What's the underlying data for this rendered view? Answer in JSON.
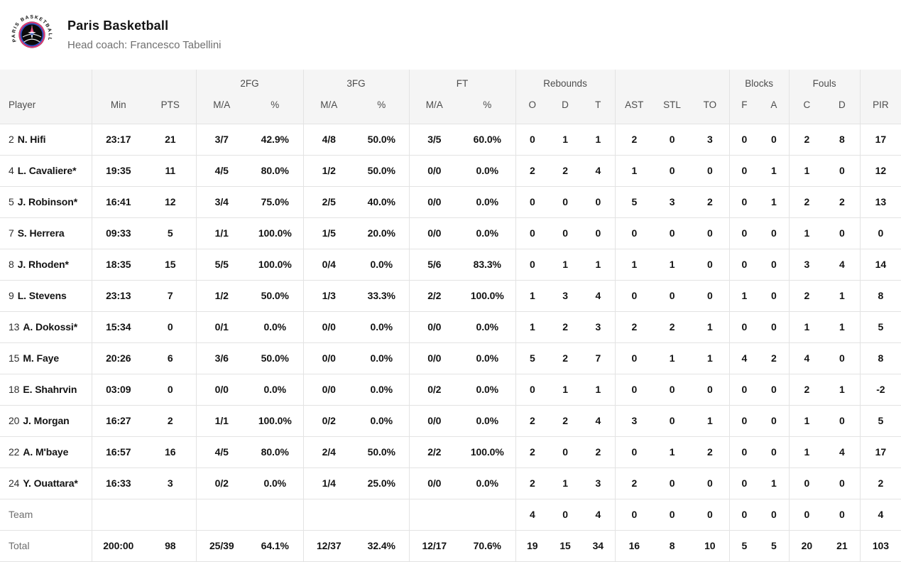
{
  "team": {
    "name": "Paris Basketball",
    "coach": "Head coach: Francesco Tabellini",
    "logo_text": "PARIS BASKETBALL",
    "logo_colors": {
      "ring_pink": "#e73a74",
      "ring_blue": "#2d53c4",
      "disc": "#0b0b0b"
    }
  },
  "table": {
    "groups": {
      "fg2": "2FG",
      "fg3": "3FG",
      "ft": "FT",
      "rebounds": "Rebounds",
      "blocks": "Blocks",
      "fouls": "Fouls"
    },
    "headers": {
      "player": "Player",
      "min": "Min",
      "pts": "PTS",
      "ma": "M/A",
      "pct": "%",
      "o": "O",
      "d": "D",
      "t": "T",
      "ast": "AST",
      "stl": "STL",
      "to": "TO",
      "f": "F",
      "a": "A",
      "c": "C",
      "pir": "PIR"
    },
    "rows": [
      {
        "number": "2",
        "name": "N. Hifi",
        "muted": false,
        "stats": [
          "23:17",
          "21",
          "3/7",
          "42.9%",
          "4/8",
          "50.0%",
          "3/5",
          "60.0%",
          "0",
          "1",
          "1",
          "2",
          "0",
          "3",
          "0",
          "0",
          "2",
          "8",
          "17"
        ]
      },
      {
        "number": "4",
        "name": "L. Cavaliere*",
        "muted": false,
        "stats": [
          "19:35",
          "11",
          "4/5",
          "80.0%",
          "1/2",
          "50.0%",
          "0/0",
          "0.0%",
          "2",
          "2",
          "4",
          "1",
          "0",
          "0",
          "0",
          "1",
          "1",
          "0",
          "12"
        ]
      },
      {
        "number": "5",
        "name": "J. Robinson*",
        "muted": false,
        "stats": [
          "16:41",
          "12",
          "3/4",
          "75.0%",
          "2/5",
          "40.0%",
          "0/0",
          "0.0%",
          "0",
          "0",
          "0",
          "5",
          "3",
          "2",
          "0",
          "1",
          "2",
          "2",
          "13"
        ]
      },
      {
        "number": "7",
        "name": "S. Herrera",
        "muted": false,
        "stats": [
          "09:33",
          "5",
          "1/1",
          "100.0%",
          "1/5",
          "20.0%",
          "0/0",
          "0.0%",
          "0",
          "0",
          "0",
          "0",
          "0",
          "0",
          "0",
          "0",
          "1",
          "0",
          "0"
        ]
      },
      {
        "number": "8",
        "name": "J. Rhoden*",
        "muted": false,
        "stats": [
          "18:35",
          "15",
          "5/5",
          "100.0%",
          "0/4",
          "0.0%",
          "5/6",
          "83.3%",
          "0",
          "1",
          "1",
          "1",
          "1",
          "0",
          "0",
          "0",
          "3",
          "4",
          "14"
        ]
      },
      {
        "number": "9",
        "name": "L. Stevens",
        "muted": false,
        "stats": [
          "23:13",
          "7",
          "1/2",
          "50.0%",
          "1/3",
          "33.3%",
          "2/2",
          "100.0%",
          "1",
          "3",
          "4",
          "0",
          "0",
          "0",
          "1",
          "0",
          "2",
          "1",
          "8"
        ]
      },
      {
        "number": "13",
        "name": "A. Dokossi*",
        "muted": false,
        "stats": [
          "15:34",
          "0",
          "0/1",
          "0.0%",
          "0/0",
          "0.0%",
          "0/0",
          "0.0%",
          "1",
          "2",
          "3",
          "2",
          "2",
          "1",
          "0",
          "0",
          "1",
          "1",
          "5"
        ]
      },
      {
        "number": "15",
        "name": "M. Faye",
        "muted": false,
        "stats": [
          "20:26",
          "6",
          "3/6",
          "50.0%",
          "0/0",
          "0.0%",
          "0/0",
          "0.0%",
          "5",
          "2",
          "7",
          "0",
          "1",
          "1",
          "4",
          "2",
          "4",
          "0",
          "8"
        ]
      },
      {
        "number": "18",
        "name": "E. Shahrvin",
        "muted": false,
        "stats": [
          "03:09",
          "0",
          "0/0",
          "0.0%",
          "0/0",
          "0.0%",
          "0/2",
          "0.0%",
          "0",
          "1",
          "1",
          "0",
          "0",
          "0",
          "0",
          "0",
          "2",
          "1",
          "-2"
        ]
      },
      {
        "number": "20",
        "name": "J. Morgan",
        "muted": false,
        "stats": [
          "16:27",
          "2",
          "1/1",
          "100.0%",
          "0/2",
          "0.0%",
          "0/0",
          "0.0%",
          "2",
          "2",
          "4",
          "3",
          "0",
          "1",
          "0",
          "0",
          "1",
          "0",
          "5"
        ]
      },
      {
        "number": "22",
        "name": "A. M'baye",
        "muted": false,
        "stats": [
          "16:57",
          "16",
          "4/5",
          "80.0%",
          "2/4",
          "50.0%",
          "2/2",
          "100.0%",
          "2",
          "0",
          "2",
          "0",
          "1",
          "2",
          "0",
          "0",
          "1",
          "4",
          "17"
        ]
      },
      {
        "number": "24",
        "name": "Y. Ouattara*",
        "muted": false,
        "stats": [
          "16:33",
          "3",
          "0/2",
          "0.0%",
          "1/4",
          "25.0%",
          "0/0",
          "0.0%",
          "2",
          "1",
          "3",
          "2",
          "0",
          "0",
          "0",
          "1",
          "0",
          "0",
          "2"
        ]
      },
      {
        "number": "",
        "name": "Team",
        "muted": true,
        "stats": [
          "",
          "",
          "",
          "",
          "",
          "",
          "",
          "",
          "4",
          "0",
          "4",
          "0",
          "0",
          "0",
          "0",
          "0",
          "0",
          "0",
          "4"
        ]
      },
      {
        "number": "",
        "name": "Total",
        "muted": true,
        "stats": [
          "200:00",
          "98",
          "25/39",
          "64.1%",
          "12/37",
          "32.4%",
          "12/17",
          "70.6%",
          "19",
          "15",
          "34",
          "16",
          "8",
          "10",
          "5",
          "5",
          "20",
          "21",
          "103"
        ]
      }
    ]
  }
}
